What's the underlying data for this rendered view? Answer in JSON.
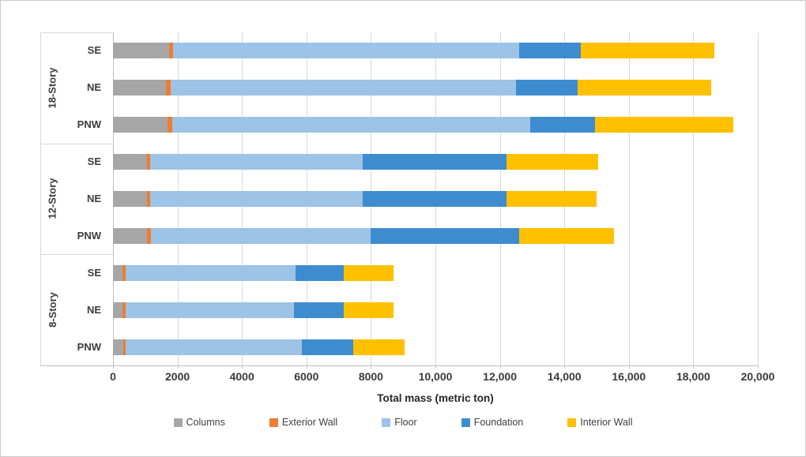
{
  "chart_data": {
    "type": "bar",
    "orientation": "horizontal",
    "stacked": true,
    "title": "",
    "xlabel": "Total mass (metric ton)",
    "ylabel": "",
    "grid": true,
    "legend_position": "bottom",
    "x_axis": {
      "min": 0,
      "max": 20000,
      "tick_interval": 2000,
      "tick_labels": [
        "0",
        "2000",
        "4000",
        "6000",
        "8000",
        "10,000",
        "12,000",
        "14,000",
        "16,000",
        "18,000",
        "20,000"
      ]
    },
    "series": [
      "Columns",
      "Exterior Wall",
      "Floor",
      "Foundation",
      "Interior Wall"
    ],
    "colors": {
      "Columns": "#A6A6A6",
      "Exterior Wall": "#ED7D31",
      "Floor": "#9DC3E6",
      "Foundation": "#3E8CD0",
      "Interior Wall": "#FFC000"
    },
    "groups": [
      {
        "label": "18-Story",
        "rows": [
          {
            "label": "SE",
            "values": [
              1750,
              120,
              10730,
              1900,
              4150
            ]
          },
          {
            "label": "NE",
            "values": [
              1650,
              140,
              10710,
              1900,
              4150
            ]
          },
          {
            "label": "PNW",
            "values": [
              1700,
              140,
              11110,
              2000,
              4300
            ]
          }
        ]
      },
      {
        "label": "12-Story",
        "rows": [
          {
            "label": "SE",
            "values": [
              1050,
              100,
              6600,
              4450,
              2850
            ]
          },
          {
            "label": "NE",
            "values": [
              1050,
              100,
              6600,
              4450,
              2800
            ]
          },
          {
            "label": "PNW",
            "values": [
              1060,
              110,
              6830,
              4600,
              2950
            ]
          }
        ]
      },
      {
        "label": "8-Story",
        "rows": [
          {
            "label": "SE",
            "values": [
              290,
              100,
              5260,
              1500,
              1550
            ]
          },
          {
            "label": "NE",
            "values": [
              290,
              100,
              5230,
              1530,
              1550
            ]
          },
          {
            "label": "PNW",
            "values": [
              320,
              80,
              5450,
              1600,
              1600
            ]
          }
        ]
      }
    ]
  }
}
